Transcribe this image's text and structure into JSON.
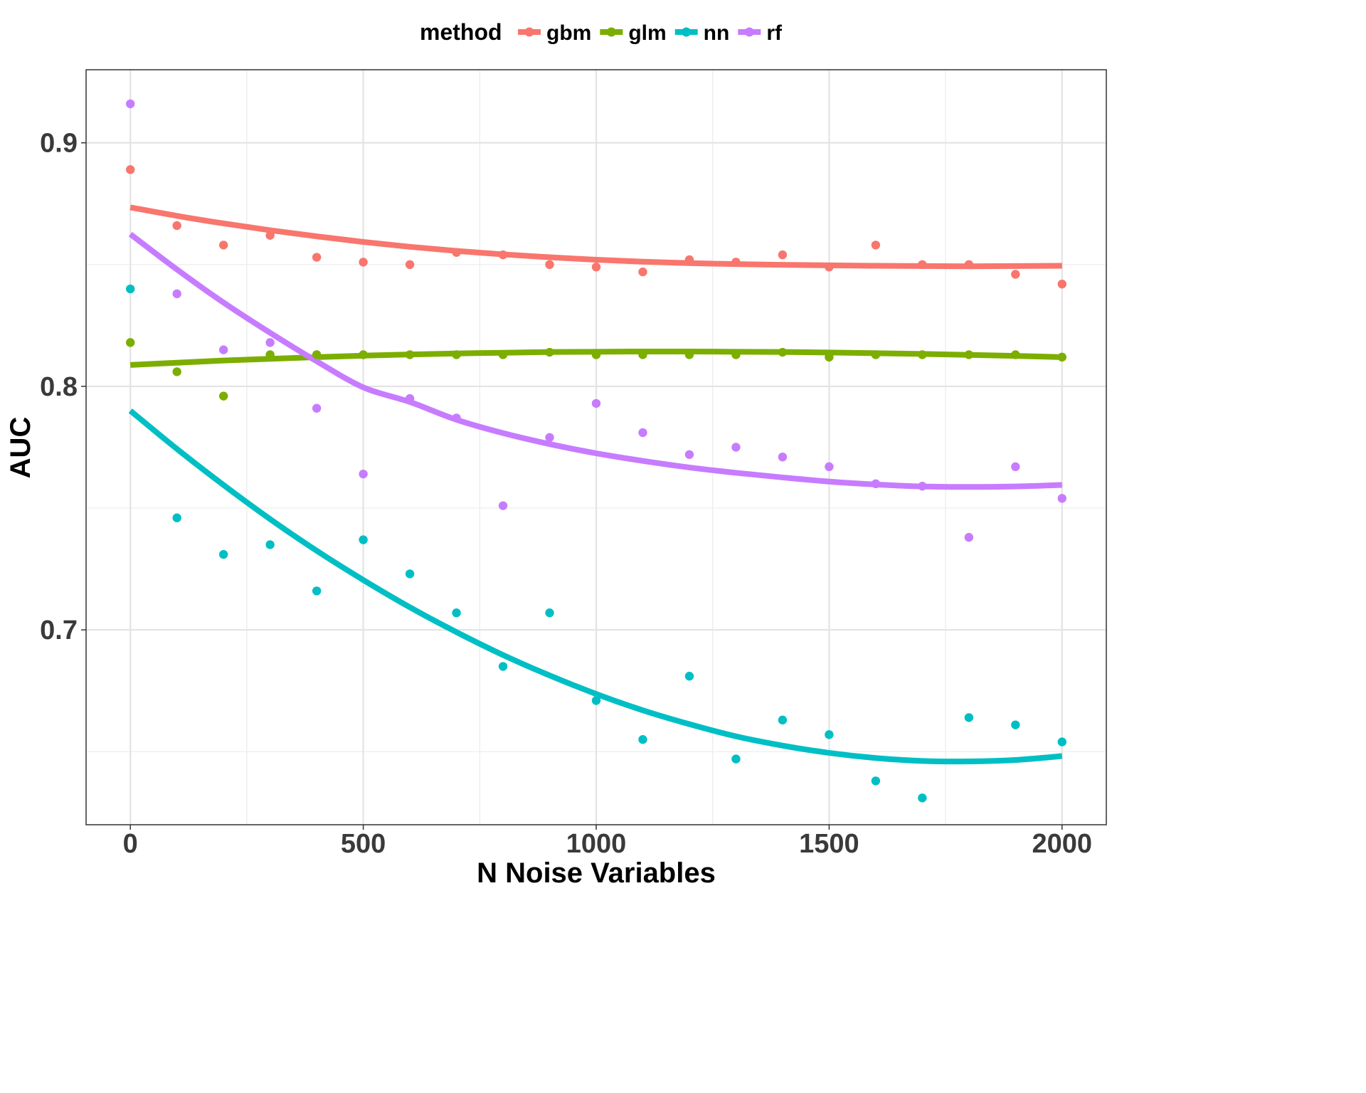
{
  "chart_data": {
    "type": "scatter",
    "title": "",
    "xlabel": "N Noise Variables",
    "ylabel": "AUC",
    "xlim": [
      -95,
      2095
    ],
    "ylim": [
      0.62,
      0.93
    ],
    "x_ticks": [
      0,
      500,
      1000,
      1500,
      2000
    ],
    "x_tick_labels": [
      "0",
      "500",
      "1000",
      "1500",
      "2000"
    ],
    "y_ticks": [
      0.7,
      0.8,
      0.9
    ],
    "y_tick_labels": [
      "0.7",
      "0.8",
      "0.9"
    ],
    "grid": true,
    "legend": {
      "title": "method",
      "position": "top"
    },
    "x": [
      0,
      100,
      200,
      300,
      400,
      500,
      600,
      700,
      800,
      900,
      1000,
      1100,
      1200,
      1300,
      1400,
      1500,
      1600,
      1700,
      1800,
      1900,
      2000
    ],
    "series": [
      {
        "name": "gbm",
        "color": "#F8766D",
        "points": [
          0.889,
          0.866,
          0.858,
          0.862,
          0.853,
          0.851,
          0.85,
          0.855,
          0.854,
          0.85,
          0.849,
          0.847,
          0.852,
          0.851,
          0.854,
          0.849,
          0.858,
          0.85,
          0.85,
          0.846,
          0.842
        ],
        "trend": [
          0.8735,
          0.87,
          0.8669,
          0.8641,
          0.8616,
          0.8593,
          0.8573,
          0.8556,
          0.8542,
          0.853,
          0.852,
          0.8512,
          0.8506,
          0.8502,
          0.8499,
          0.8497,
          0.8495,
          0.8494,
          0.8493,
          0.8494,
          0.8495
        ]
      },
      {
        "name": "glm",
        "color": "#7CAE00",
        "points": [
          0.818,
          0.806,
          0.796,
          0.813,
          0.813,
          0.813,
          0.813,
          0.813,
          0.813,
          0.814,
          0.813,
          0.813,
          0.813,
          0.813,
          0.814,
          0.812,
          0.813,
          0.813,
          0.813,
          0.813,
          0.812
        ],
        "trend": [
          0.8088,
          0.8097,
          0.8106,
          0.8113,
          0.812,
          0.8126,
          0.8131,
          0.8135,
          0.8138,
          0.8141,
          0.8142,
          0.8143,
          0.8143,
          0.8142,
          0.8141,
          0.8139,
          0.8136,
          0.8133,
          0.8129,
          0.8125,
          0.812
        ]
      },
      {
        "name": "nn",
        "color": "#00BFC4",
        "points": [
          0.84,
          0.746,
          0.731,
          0.735,
          0.716,
          0.737,
          0.723,
          0.707,
          0.685,
          0.707,
          0.671,
          0.655,
          0.681,
          0.647,
          0.663,
          0.657,
          0.638,
          0.631,
          0.664,
          0.661,
          0.654
        ],
        "trend": [
          0.79,
          0.7743,
          0.7595,
          0.7455,
          0.7325,
          0.7205,
          0.7093,
          0.6991,
          0.6897,
          0.6813,
          0.6737,
          0.667,
          0.6613,
          0.6563,
          0.6525,
          0.6495,
          0.6474,
          0.6462,
          0.646,
          0.6466,
          0.6482
        ]
      },
      {
        "name": "rf",
        "color": "#C77CFF",
        "points": [
          0.916,
          0.838,
          0.815,
          0.818,
          0.791,
          0.764,
          0.795,
          0.787,
          0.751,
          0.779,
          0.793,
          0.781,
          0.772,
          0.775,
          0.771,
          0.767,
          0.76,
          0.759,
          0.738,
          0.767,
          0.754
        ],
        "trend": [
          0.8625,
          0.848,
          0.8344,
          0.822,
          0.8103,
          0.7996,
          0.7936,
          0.7863,
          0.7808,
          0.7763,
          0.7725,
          0.7694,
          0.7667,
          0.7645,
          0.7626,
          0.7609,
          0.7597,
          0.7589,
          0.7587,
          0.7589,
          0.7595
        ]
      }
    ]
  }
}
